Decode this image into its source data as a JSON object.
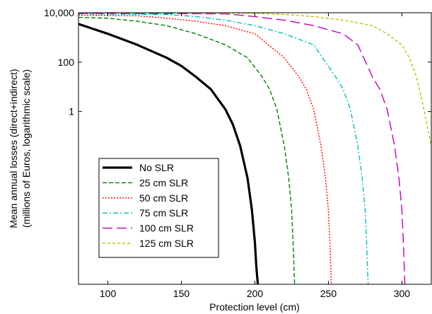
{
  "chart_data": {
    "type": "line",
    "title": "",
    "xlabel": "Protection level (cm)",
    "ylabel": [
      "Mean annual losses (direct+indirect)",
      "(millions of Euros, logarithmic scale)"
    ],
    "x_scale": "linear",
    "y_scale": "log",
    "xlim": [
      80,
      320
    ],
    "ylim": [
      1e-07,
      10000
    ],
    "x_ticks": [
      100,
      150,
      200,
      250,
      300
    ],
    "x_tick_labels": [
      "100",
      "150",
      "200",
      "250",
      "300"
    ],
    "y_ticks": [
      1,
      100,
      10000
    ],
    "y_tick_labels": [
      "1",
      "100",
      "10,000"
    ],
    "grid": false,
    "legend_position": "lower-left",
    "series": [
      {
        "name": "No SLR",
        "color": "#000000",
        "style": "solid",
        "x": [
          80,
          100,
          120,
          140,
          150,
          160,
          170,
          180,
          185,
          190,
          195,
          198,
          200,
          201,
          202
        ],
        "y": [
          3500,
          1400,
          500,
          150,
          70,
          25,
          8,
          1.2,
          0.3,
          0.04,
          0.002,
          0.0001,
          5e-06,
          5e-07,
          1e-07
        ]
      },
      {
        "name": "25 cm SLR",
        "color": "#007f00",
        "style": "dashed",
        "x": [
          80,
          100,
          120,
          140,
          160,
          180,
          195,
          205,
          210,
          215,
          220,
          223,
          225,
          226,
          227
        ],
        "y": [
          6500,
          6000,
          4500,
          3000,
          1400,
          500,
          150,
          25,
          8,
          1.2,
          0.04,
          0.002,
          0.0001,
          5e-06,
          1e-07
        ]
      },
      {
        "name": "50 cm SLR",
        "color": "#ff0000",
        "style": "dotted",
        "x": [
          80,
          120,
          140,
          160,
          180,
          200,
          220,
          230,
          235,
          240,
          245,
          248,
          250,
          251,
          252
        ],
        "y": [
          8000,
          7500,
          6000,
          4500,
          3000,
          1400,
          150,
          25,
          8,
          1.2,
          0.04,
          0.002,
          0.0001,
          5e-06,
          1e-07
        ]
      },
      {
        "name": "75 cm SLR",
        "color": "#00bfbf",
        "style": "dashdot",
        "x": [
          80,
          140,
          160,
          180,
          200,
          220,
          240,
          255,
          260,
          265,
          270,
          273,
          275,
          276,
          277
        ],
        "y": [
          9000,
          8500,
          7000,
          5000,
          3000,
          1400,
          500,
          25,
          8,
          1.2,
          0.04,
          0.002,
          0.0001,
          5e-06,
          1e-07
        ]
      },
      {
        "name": "100 cm SLR",
        "color": "#bf00bf",
        "style": "longdash",
        "x": [
          80,
          180,
          200,
          220,
          240,
          260,
          270,
          280,
          285,
          290,
          295,
          298,
          300,
          301,
          302
        ],
        "y": [
          9500,
          9000,
          7000,
          5000,
          3000,
          1400,
          500,
          25,
          8,
          1.2,
          0.04,
          0.002,
          0.0001,
          5e-06,
          1e-07
        ]
      },
      {
        "name": "125 cm SLR",
        "color": "#bfbf00",
        "style": "shortdash",
        "x": [
          80,
          200,
          220,
          240,
          260,
          280,
          290,
          300,
          305,
          310,
          315,
          320
        ],
        "y": [
          10000,
          9500,
          8500,
          7000,
          5000,
          3000,
          1400,
          500,
          150,
          25,
          1.2,
          0.04
        ]
      }
    ]
  }
}
